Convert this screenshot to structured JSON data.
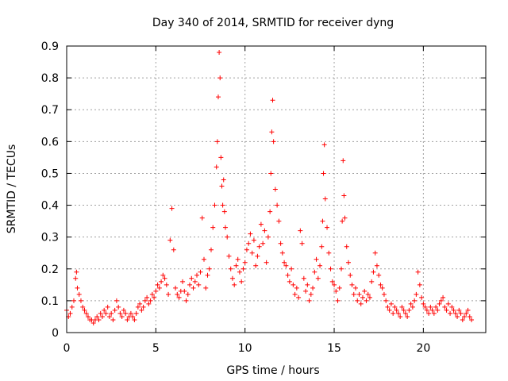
{
  "chart_data": {
    "type": "scatter",
    "title": "Day 340 of 2014, SRMTID for receiver dyng",
    "xlabel": "GPS time / hours",
    "ylabel": "SRMTID / TECUs",
    "xlim": [
      0,
      23.5
    ],
    "ylim": [
      0,
      0.9
    ],
    "xticks": [
      "0",
      "5",
      "10",
      "15",
      "20"
    ],
    "yticks": [
      "0",
      "0.1",
      "0.2",
      "0.3",
      "0.4",
      "0.5",
      "0.6",
      "0.7",
      "0.8",
      "0.9"
    ],
    "grid": true,
    "marker": "plus",
    "color": "#ff0000",
    "series": [
      {
        "name": "SRMTID dyng",
        "x": [
          0.0,
          0.1,
          0.2,
          0.3,
          0.4,
          0.5,
          0.55,
          0.6,
          0.7,
          0.8,
          0.9,
          1.0,
          1.1,
          1.2,
          1.3,
          1.4,
          1.5,
          1.6,
          1.7,
          1.8,
          1.9,
          2.0,
          2.1,
          2.2,
          2.3,
          2.4,
          2.5,
          2.6,
          2.7,
          2.8,
          2.9,
          3.0,
          3.1,
          3.2,
          3.3,
          3.4,
          3.5,
          3.6,
          3.7,
          3.8,
          3.9,
          4.0,
          4.1,
          4.2,
          4.3,
          4.4,
          4.5,
          4.6,
          4.7,
          4.8,
          4.9,
          5.0,
          5.1,
          5.2,
          5.3,
          5.4,
          5.5,
          5.6,
          5.7,
          5.8,
          5.9,
          6.0,
          6.1,
          6.2,
          6.3,
          6.4,
          6.5,
          6.6,
          6.7,
          6.8,
          6.9,
          7.0,
          7.1,
          7.2,
          7.3,
          7.4,
          7.5,
          7.6,
          7.7,
          7.8,
          7.9,
          8.0,
          8.1,
          8.2,
          8.3,
          8.4,
          8.45,
          8.5,
          8.55,
          8.6,
          8.65,
          8.7,
          8.75,
          8.8,
          8.85,
          8.9,
          9.0,
          9.1,
          9.2,
          9.3,
          9.4,
          9.5,
          9.6,
          9.7,
          9.8,
          9.9,
          10.0,
          10.1,
          10.2,
          10.3,
          10.4,
          10.5,
          10.6,
          10.7,
          10.8,
          10.9,
          11.0,
          11.1,
          11.2,
          11.3,
          11.4,
          11.45,
          11.5,
          11.55,
          11.6,
          11.7,
          11.8,
          11.9,
          12.0,
          12.1,
          12.2,
          12.3,
          12.4,
          12.5,
          12.6,
          12.7,
          12.8,
          12.9,
          13.0,
          13.1,
          13.2,
          13.3,
          13.4,
          13.5,
          13.6,
          13.7,
          13.8,
          13.9,
          14.0,
          14.1,
          14.2,
          14.3,
          14.35,
          14.4,
          14.45,
          14.5,
          14.6,
          14.7,
          14.8,
          14.9,
          15.0,
          15.1,
          15.2,
          15.3,
          15.4,
          15.45,
          15.5,
          15.55,
          15.6,
          15.7,
          15.8,
          15.9,
          16.0,
          16.1,
          16.2,
          16.3,
          16.4,
          16.5,
          16.6,
          16.7,
          16.8,
          16.9,
          17.0,
          17.1,
          17.2,
          17.3,
          17.4,
          17.5,
          17.6,
          17.7,
          17.8,
          17.9,
          18.0,
          18.1,
          18.2,
          18.3,
          18.4,
          18.5,
          18.6,
          18.7,
          18.8,
          18.9,
          19.0,
          19.1,
          19.2,
          19.3,
          19.4,
          19.5,
          19.6,
          19.7,
          19.8,
          19.9,
          20.0,
          20.1,
          20.2,
          20.3,
          20.4,
          20.5,
          20.6,
          20.7,
          20.8,
          20.9,
          21.0,
          21.1,
          21.2,
          21.3,
          21.4,
          21.5,
          21.6,
          21.7,
          21.8,
          21.9,
          22.0,
          22.1,
          22.2,
          22.3,
          22.4,
          22.5,
          22.6,
          22.7
        ],
        "y": [
          0.07,
          0.05,
          0.06,
          0.08,
          0.1,
          0.17,
          0.19,
          0.14,
          0.12,
          0.1,
          0.08,
          0.07,
          0.06,
          0.05,
          0.04,
          0.04,
          0.03,
          0.04,
          0.05,
          0.04,
          0.06,
          0.05,
          0.07,
          0.06,
          0.08,
          0.05,
          0.06,
          0.04,
          0.07,
          0.1,
          0.08,
          0.06,
          0.05,
          0.07,
          0.06,
          0.04,
          0.05,
          0.06,
          0.05,
          0.04,
          0.06,
          0.08,
          0.09,
          0.07,
          0.08,
          0.1,
          0.11,
          0.09,
          0.1,
          0.12,
          0.11,
          0.13,
          0.15,
          0.14,
          0.16,
          0.18,
          0.17,
          0.15,
          0.12,
          0.29,
          0.39,
          0.26,
          0.14,
          0.12,
          0.11,
          0.13,
          0.16,
          0.13,
          0.1,
          0.12,
          0.15,
          0.17,
          0.14,
          0.16,
          0.18,
          0.15,
          0.19,
          0.36,
          0.23,
          0.14,
          0.18,
          0.2,
          0.26,
          0.33,
          0.4,
          0.52,
          0.6,
          0.74,
          0.88,
          0.8,
          0.55,
          0.46,
          0.4,
          0.48,
          0.38,
          0.33,
          0.3,
          0.24,
          0.2,
          0.17,
          0.15,
          0.21,
          0.23,
          0.19,
          0.16,
          0.2,
          0.22,
          0.26,
          0.28,
          0.31,
          0.25,
          0.29,
          0.21,
          0.24,
          0.27,
          0.34,
          0.28,
          0.32,
          0.22,
          0.3,
          0.38,
          0.5,
          0.63,
          0.73,
          0.6,
          0.45,
          0.4,
          0.35,
          0.28,
          0.25,
          0.22,
          0.21,
          0.18,
          0.16,
          0.2,
          0.15,
          0.12,
          0.14,
          0.11,
          0.32,
          0.28,
          0.17,
          0.13,
          0.15,
          0.1,
          0.12,
          0.14,
          0.19,
          0.23,
          0.17,
          0.21,
          0.27,
          0.35,
          0.5,
          0.59,
          0.42,
          0.33,
          0.25,
          0.2,
          0.16,
          0.15,
          0.13,
          0.1,
          0.14,
          0.2,
          0.35,
          0.54,
          0.43,
          0.36,
          0.27,
          0.22,
          0.18,
          0.15,
          0.12,
          0.14,
          0.1,
          0.12,
          0.09,
          0.11,
          0.13,
          0.1,
          0.12,
          0.11,
          0.16,
          0.19,
          0.25,
          0.21,
          0.18,
          0.15,
          0.14,
          0.12,
          0.1,
          0.08,
          0.07,
          0.09,
          0.06,
          0.08,
          0.07,
          0.06,
          0.05,
          0.08,
          0.07,
          0.06,
          0.05,
          0.07,
          0.09,
          0.08,
          0.1,
          0.12,
          0.19,
          0.15,
          0.11,
          0.09,
          0.08,
          0.07,
          0.06,
          0.08,
          0.07,
          0.06,
          0.08,
          0.07,
          0.09,
          0.1,
          0.11,
          0.08,
          0.07,
          0.09,
          0.06,
          0.08,
          0.07,
          0.06,
          0.05,
          0.07,
          0.06,
          0.04,
          0.05,
          0.06,
          0.07,
          0.05,
          0.04
        ]
      }
    ]
  }
}
